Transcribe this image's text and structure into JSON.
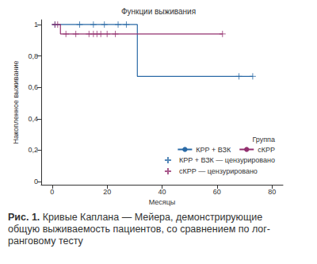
{
  "chart_data": {
    "type": "line",
    "title": "Функции выживания",
    "x_label": "Месяцы",
    "y_label": "Накопленное выживание",
    "legend_title": "Группа",
    "caption_label": "Рис. 1.",
    "caption": "Кривые Каплана — Мейера, демонстрирующие общую выживаемость пациентов, со сравнением по лог-ранговому тесту",
    "xlim": [
      -4,
      84
    ],
    "xticks": [
      0,
      20,
      40,
      60,
      80
    ],
    "ylim": [
      -0.02,
      1.03
    ],
    "yticks": [
      0,
      {
        "value": 0.2,
        "label": "0,2"
      },
      {
        "value": 0.4,
        "label": "0,4"
      },
      {
        "value": 0.6,
        "label": "0,6"
      },
      {
        "value": 0.8,
        "label": "0,8"
      },
      1
    ],
    "grid": false,
    "legend": "bottom-right",
    "series": [
      {
        "name": "КРР + ВЗК",
        "type": "line",
        "line_style": "step",
        "color": "#2a6aa6",
        "x": [
          0,
          31,
          73
        ],
        "values": [
          1,
          0.67,
          0.67
        ]
      },
      {
        "name": "сКРР",
        "type": "line",
        "line_style": "step",
        "color": "#93306f",
        "x": [
          0,
          3,
          62
        ],
        "values": [
          1,
          0.94,
          0.94
        ]
      },
      {
        "name": "КРР + ВЗК — цензурировано",
        "type": "scatter",
        "marker": "plus",
        "color": "#2a6aa6",
        "x": [
          1,
          10,
          15,
          19,
          24,
          27,
          68,
          73
        ],
        "values": [
          1,
          1,
          1,
          1,
          1,
          1,
          0.67,
          0.67
        ]
      },
      {
        "name": "сКРР — цензурировано",
        "type": "scatter",
        "marker": "plus",
        "color": "#93306f",
        "x": [
          1,
          2,
          5,
          8.6,
          13.4,
          15,
          16.3,
          17.7,
          20,
          23,
          62
        ],
        "values": [
          1,
          1,
          0.94,
          0.94,
          0.94,
          0.94,
          0.94,
          0.94,
          0.94,
          0.94,
          0.94
        ]
      }
    ]
  }
}
